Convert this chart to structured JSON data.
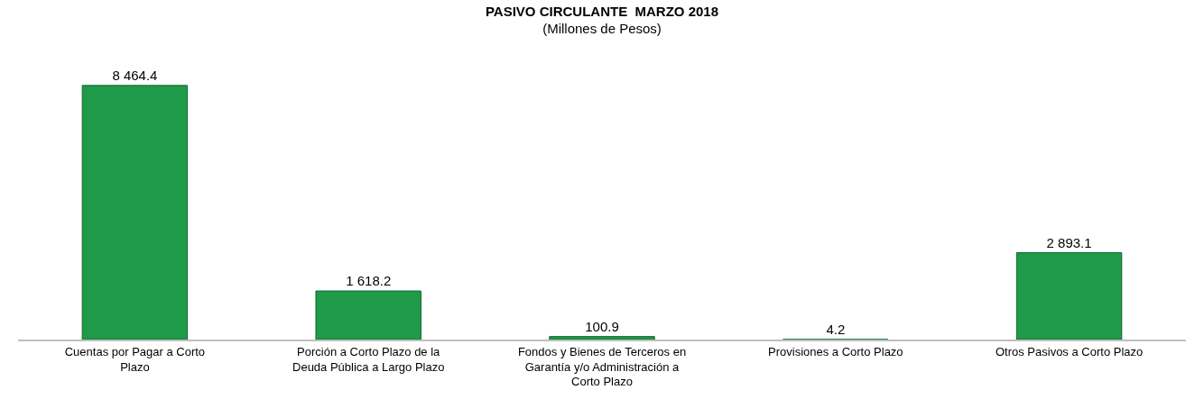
{
  "chart_data": {
    "type": "bar",
    "title": "PASIVO CIRCULANTE  MARZO 2018",
    "subtitle": "(Millones de Pesos)",
    "categories": [
      "Cuentas por Pagar a Corto Plazo",
      "Porción a Corto Plazo de la Deuda Pública a Largo Plazo",
      "Fondos y Bienes de Terceros en Garantía y/o Administración a Corto Plazo",
      "Provisiones a Corto Plazo",
      "Otros Pasivos a Corto Plazo"
    ],
    "values": [
      8464.4,
      1618.2,
      100.9,
      4.2,
      2893.1
    ],
    "value_labels": [
      "8 464.4",
      "1 618.2",
      "100.9",
      "4.2",
      "2 893.1"
    ],
    "color": "#1f9a48"
  }
}
